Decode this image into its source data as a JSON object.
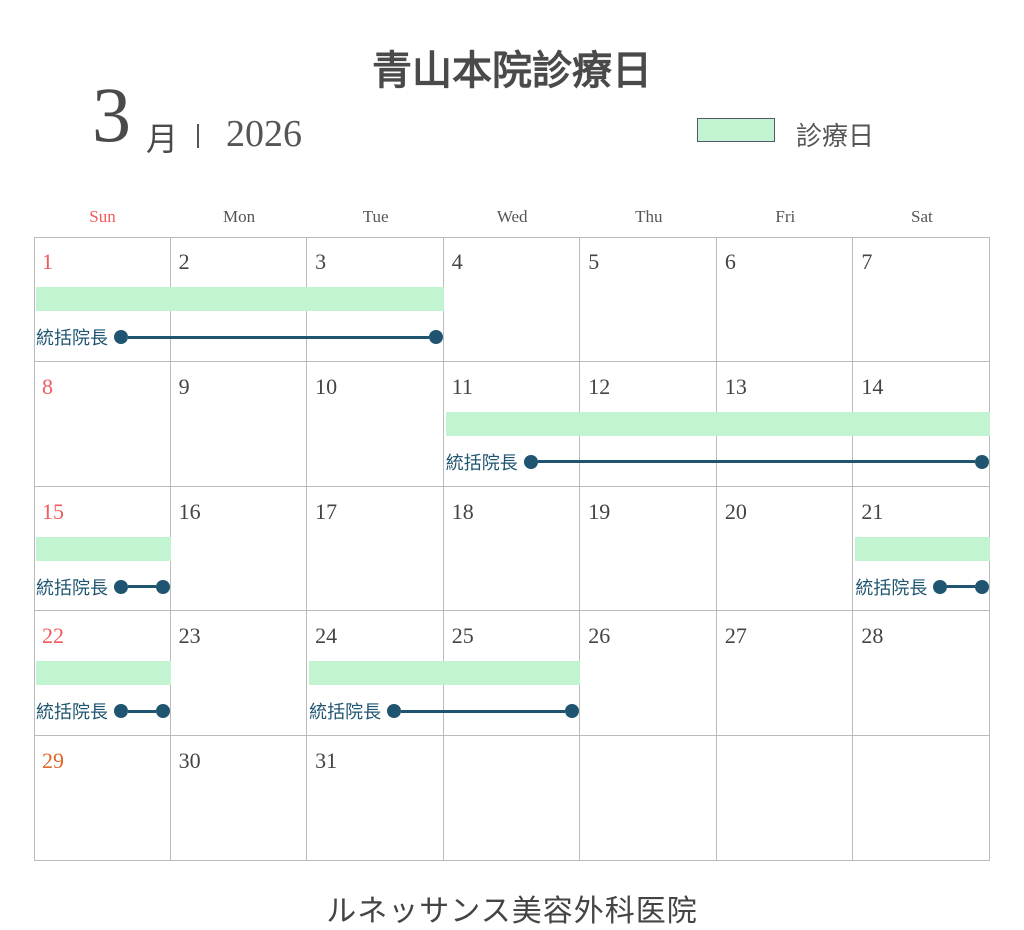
{
  "title": "青山本院診療日",
  "month": "3",
  "month_suffix": "月",
  "year": "2026",
  "legend": {
    "label": "診療日",
    "color": "#c3f4d2"
  },
  "weekdays": [
    "Sun",
    "Mon",
    "Tue",
    "Wed",
    "Thu",
    "Fri",
    "Sat"
  ],
  "colors": {
    "sunday": "#f05a5a",
    "special_day": "#e0662a",
    "event_line": "#1f5570",
    "text": "#444444"
  },
  "weeks": [
    [
      "1",
      "2",
      "3",
      "4",
      "5",
      "6",
      "7"
    ],
    [
      "8",
      "9",
      "10",
      "11",
      "12",
      "13",
      "14"
    ],
    [
      "15",
      "16",
      "17",
      "18",
      "19",
      "20",
      "21"
    ],
    [
      "22",
      "23",
      "24",
      "25",
      "26",
      "27",
      "28"
    ],
    [
      "29",
      "30",
      "31",
      "",
      "",
      "",
      ""
    ]
  ],
  "special_days": [
    "29"
  ],
  "events": [
    {
      "week": 0,
      "start": 0,
      "end": 2,
      "label": "統括院長"
    },
    {
      "week": 1,
      "start": 3,
      "end": 6,
      "label": "統括院長"
    },
    {
      "week": 2,
      "start": 0,
      "end": 0,
      "label": "統括院長"
    },
    {
      "week": 2,
      "start": 6,
      "end": 6,
      "label": "統括院長"
    },
    {
      "week": 3,
      "start": 0,
      "end": 0,
      "label": "統括院長"
    },
    {
      "week": 3,
      "start": 2,
      "end": 3,
      "label": "統括院長"
    }
  ],
  "footer": "ルネッサンス美容外科医院"
}
